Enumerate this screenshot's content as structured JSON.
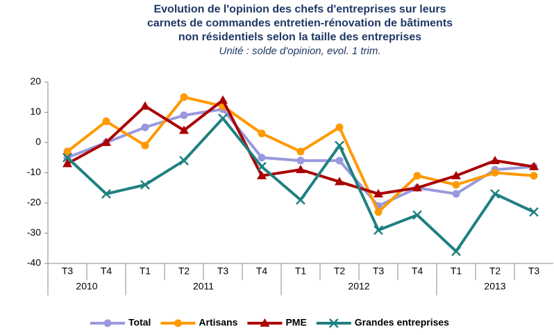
{
  "chart_data": {
    "type": "line",
    "title": [
      "Evolution de l'opinion des chefs d'entreprises sur leurs",
      "carnets de commandes entretien-rénovation de bâtiments",
      "non résidentiels selon la taille des entreprises"
    ],
    "subtitle": "Unité : solde d'opinion, evol. 1 trim.",
    "categories": [
      "T3",
      "T4",
      "T1",
      "T2",
      "T3",
      "T4",
      "T1",
      "T2",
      "T3",
      "T4",
      "T1",
      "T2",
      "T3"
    ],
    "year_groups": [
      {
        "label": "2010",
        "count": 2
      },
      {
        "label": "2011",
        "count": 4
      },
      {
        "label": "2012",
        "count": 4
      },
      {
        "label": "2013",
        "count": 3
      }
    ],
    "ylim": [
      -40,
      20
    ],
    "yticks": [
      -40,
      -30,
      -20,
      -10,
      0,
      10,
      20
    ],
    "grid": false,
    "legend": "bottom",
    "series": [
      {
        "name": "Total",
        "color": "#9999dd",
        "marker": "circle",
        "values": [
          -5,
          0,
          5,
          9,
          11,
          -5,
          -6,
          -6,
          -21,
          -15,
          -17,
          -9,
          -8
        ]
      },
      {
        "name": "Artisans",
        "color": "#ff9900",
        "marker": "circle",
        "values": [
          -3,
          7,
          -1,
          15,
          12,
          3,
          -3,
          5,
          -23,
          -11,
          -14,
          -10,
          -11
        ]
      },
      {
        "name": "PME",
        "color": "#aa0000",
        "marker": "triangle",
        "values": [
          -7,
          0,
          12,
          4,
          14,
          -11,
          -9,
          -13,
          -17,
          -15,
          -11,
          -6,
          -8
        ]
      },
      {
        "name": "Grandes entreprises",
        "color": "#1f8080",
        "marker": "x",
        "values": [
          -5,
          -17,
          -14,
          -6,
          8,
          -8,
          -19,
          -1,
          -29,
          -24,
          -36,
          -17,
          -23
        ]
      }
    ]
  }
}
